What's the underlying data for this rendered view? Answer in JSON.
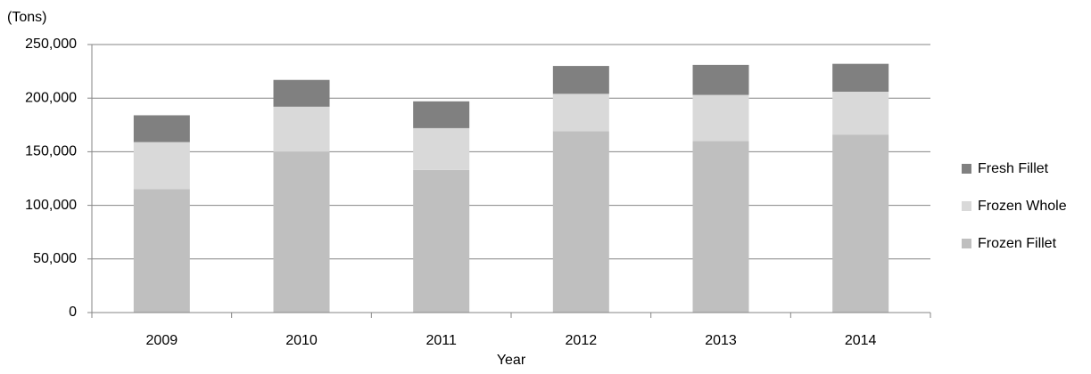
{
  "chart_data": {
    "type": "stacked_bar",
    "y_unit": "(Tons)",
    "x_label": "Year",
    "categories": [
      "2009",
      "2010",
      "2011",
      "2012",
      "2013",
      "2014"
    ],
    "series": [
      {
        "name": "Frozen Fillet",
        "color": "#bfbfbf",
        "values": [
          115000,
          150000,
          133000,
          169000,
          160000,
          166000
        ]
      },
      {
        "name": "Frozen Whole",
        "color": "#d9d9d9",
        "values": [
          44000,
          42000,
          39000,
          35000,
          43000,
          40000
        ]
      },
      {
        "name": "Fresh Fillet",
        "color": "#808080",
        "values": [
          25000,
          25000,
          25000,
          26000,
          28000,
          26000
        ]
      }
    ],
    "ylim": [
      0,
      250000
    ],
    "yticks": [
      0,
      {
        "value": 50000,
        "label": "50,000"
      },
      {
        "value": 100000,
        "label": "100,000"
      },
      {
        "value": 150000,
        "label": "150,000"
      },
      {
        "value": 200000,
        "label": "200,000"
      },
      {
        "value": 250000,
        "label": "250,000"
      }
    ],
    "grid": true,
    "legend": "right"
  }
}
